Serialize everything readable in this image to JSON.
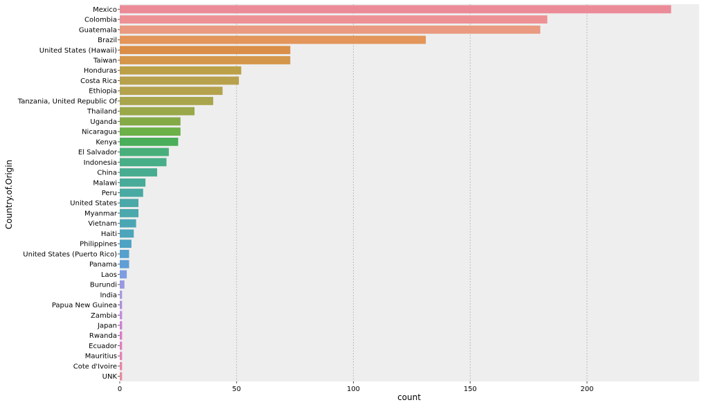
{
  "chart_data": {
    "type": "bar",
    "orientation": "horizontal",
    "title": "",
    "xlabel": "count",
    "ylabel": "Country.of.Origin",
    "xlim": [
      0,
      248
    ],
    "xticks": [
      0,
      50,
      100,
      150,
      200
    ],
    "grid": "vertical",
    "categories": [
      "Mexico",
      "Colombia",
      "Guatemala",
      "Brazil",
      "United States (Hawaii)",
      "Taiwan",
      "Honduras",
      "Costa Rica",
      "Ethiopia",
      "Tanzania, United Republic Of",
      "Thailand",
      "Uganda",
      "Nicaragua",
      "Kenya",
      "El Salvador",
      "Indonesia",
      "China",
      "Malawi",
      "Peru",
      "United States",
      "Myanmar",
      "Vietnam",
      "Haiti",
      "Philippines",
      "United States (Puerto Rico)",
      "Panama",
      "Laos",
      "Burundi",
      "India",
      "Papua New Guinea",
      "Zambia",
      "Japan",
      "Rwanda",
      "Ecuador",
      "Mauritius",
      "Cote d'Ivoire",
      "UNK"
    ],
    "values": [
      236,
      183,
      180,
      131,
      73,
      73,
      52,
      51,
      44,
      40,
      32,
      26,
      26,
      25,
      21,
      20,
      16,
      11,
      10,
      8,
      8,
      7,
      6,
      5,
      4,
      4,
      3,
      2,
      1,
      1,
      1,
      1,
      1,
      1,
      1,
      1,
      1
    ],
    "colors": [
      "#ec8b98",
      "#ed9195",
      "#e99a80",
      "#e3955a",
      "#da8e47",
      "#d4964a",
      "#bba048",
      "#b7a14c",
      "#b4a24c",
      "#a9a54c",
      "#9aa84a",
      "#84aa48",
      "#6cb048",
      "#4aae5a",
      "#48af7b",
      "#48ae87",
      "#48ac90",
      "#48ab99",
      "#48aaa2",
      "#4aa8a8",
      "#4ba8ac",
      "#4ba6b4",
      "#4ca5bb",
      "#4ea2c4",
      "#55a0cc",
      "#5f9ed6",
      "#7e9ce0",
      "#9998e2",
      "#a99ae0",
      "#b08edd",
      "#c18be0",
      "#d27ed8",
      "#dd79c8",
      "#e27dbd",
      "#e482b5",
      "#e685a9",
      "#e88b9f"
    ],
    "background": "#eeeeee",
    "grid_color": "#b0b0b0"
  }
}
